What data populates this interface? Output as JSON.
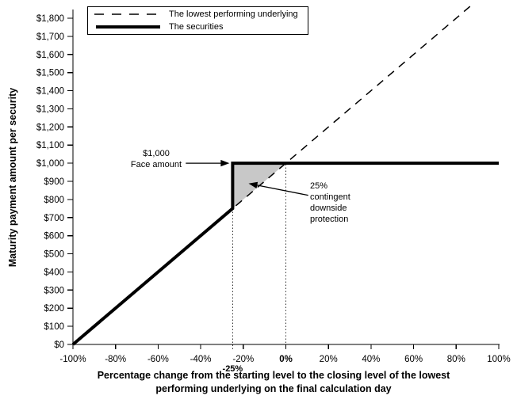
{
  "chart_data": {
    "type": "line",
    "title": "",
    "x_axis": {
      "title_line1": "Percentage change from the starting level to the closing level of the lowest",
      "title_line2": "performing underlying on the final calculation day",
      "range": [
        -100,
        100
      ],
      "ticks": [
        {
          "value": -100,
          "label": "-100%"
        },
        {
          "value": -80,
          "label": "-80%"
        },
        {
          "value": -60,
          "label": "-60%"
        },
        {
          "value": -40,
          "label": "-40%"
        },
        {
          "value": -20,
          "label": "-20%"
        },
        {
          "value": 0,
          "label": "0%",
          "bold": true
        },
        {
          "value": 20,
          "label": "20%"
        },
        {
          "value": 40,
          "label": "40%"
        },
        {
          "value": 60,
          "label": "60%"
        },
        {
          "value": 80,
          "label": "80%"
        },
        {
          "value": 100,
          "label": "100%"
        }
      ],
      "special_tick": {
        "value": -25,
        "label": "-25%",
        "bold": true
      }
    },
    "y_axis": {
      "title": "Maturity payment amount per security",
      "range": [
        0,
        1800
      ],
      "ticks": [
        {
          "value": 0,
          "label": "$0"
        },
        {
          "value": 100,
          "label": "$100"
        },
        {
          "value": 200,
          "label": "$200"
        },
        {
          "value": 300,
          "label": "$300"
        },
        {
          "value": 400,
          "label": "$400"
        },
        {
          "value": 500,
          "label": "$500"
        },
        {
          "value": 600,
          "label": "$600"
        },
        {
          "value": 700,
          "label": "$700"
        },
        {
          "value": 800,
          "label": "$800"
        },
        {
          "value": 900,
          "label": "$900"
        },
        {
          "value": 1000,
          "label": "$1,000"
        },
        {
          "value": 1100,
          "label": "$1,100"
        },
        {
          "value": 1200,
          "label": "$1,200"
        },
        {
          "value": 1300,
          "label": "$1,300"
        },
        {
          "value": 1400,
          "label": "$1,400"
        },
        {
          "value": 1500,
          "label": "$1,500"
        },
        {
          "value": 1600,
          "label": "$1,600"
        },
        {
          "value": 1700,
          "label": "$1,700"
        },
        {
          "value": 1800,
          "label": "$1,800"
        }
      ]
    },
    "series": [
      {
        "name": "The lowest performing underlying",
        "style": "dashed",
        "points": [
          [
            -100,
            0
          ],
          [
            87,
            1870
          ]
        ]
      },
      {
        "name": "The securities",
        "style": "solid",
        "points": [
          [
            -100,
            0
          ],
          [
            -25,
            750
          ],
          [
            -25,
            1000
          ],
          [
            100,
            1000
          ]
        ]
      }
    ],
    "shaded_region": {
      "fill": "#c8c8c8",
      "points": [
        [
          -25,
          750
        ],
        [
          -25,
          1000
        ],
        [
          0,
          1000
        ]
      ]
    },
    "guide_lines": [
      {
        "x": -25,
        "from": 0,
        "to": 1000
      },
      {
        "x": 0,
        "from": 0,
        "to": 1000
      }
    ],
    "annotations": [
      {
        "id": "face-amount",
        "text": "$1,000\nFace amount",
        "arrow": {
          "from": [
            -47,
            1000
          ],
          "to": [
            -26.5,
            1000
          ]
        }
      },
      {
        "id": "downside-protection",
        "text": "25%\ncontingent\ndownside\nprotection",
        "arrow": {
          "from": [
            10.5,
            823
          ],
          "to": [
            -17.5,
            888
          ]
        }
      }
    ],
    "colors": {
      "line": "#000000",
      "shade": "#c8c8c8",
      "guide": "#333333",
      "background": "#ffffff"
    },
    "legend_position": "top-left",
    "grid": false
  }
}
